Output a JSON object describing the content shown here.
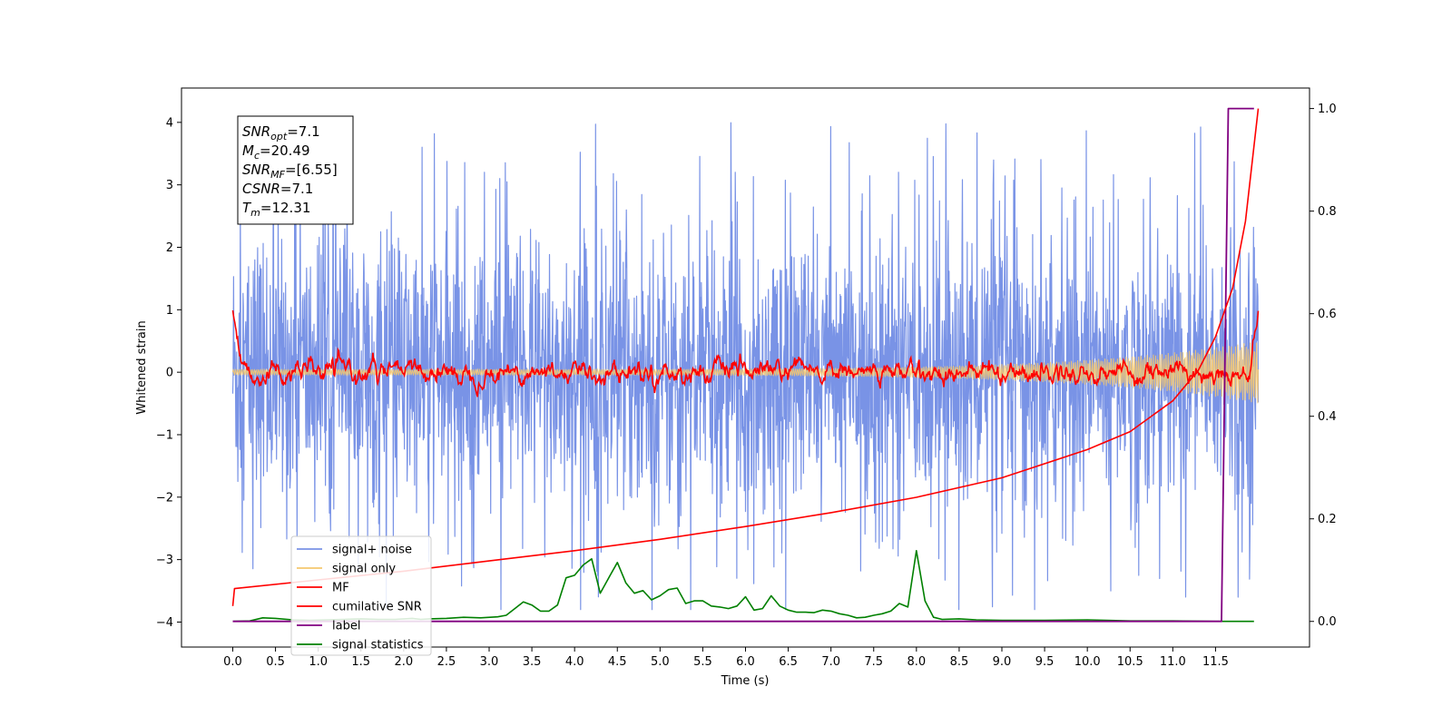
{
  "chart_data": {
    "type": "line",
    "title": "",
    "xlabel": "Time (s)",
    "ylabel": "Whitened strain",
    "ylabel_right": "",
    "xlim": [
      -0.6,
      12.6
    ],
    "ylim": [
      -4.4,
      4.55
    ],
    "ylim_right": [
      -0.05,
      1.04
    ],
    "x_ticks": [
      "0.0",
      "0.5",
      "1.0",
      "1.5",
      "2.0",
      "2.5",
      "3.0",
      "3.5",
      "4.0",
      "4.5",
      "5.0",
      "5.5",
      "6.0",
      "6.5",
      "7.0",
      "7.5",
      "8.0",
      "8.5",
      "9.0",
      "9.5",
      "10.0",
      "10.5",
      "11.0",
      "11.5"
    ],
    "y_ticks_left": [
      "4",
      "3",
      "2",
      "1",
      "0",
      "−1",
      "−2",
      "−3",
      "−4"
    ],
    "y_ticks_right": [
      "1.0",
      "0.8",
      "0.6",
      "0.4",
      "0.2",
      "0.0"
    ],
    "grid": false,
    "legend_position": "lower-left",
    "annotation": {
      "lines": [
        {
          "sym": "SNR",
          "sub": "opt",
          "val": "=7.1"
        },
        {
          "sym": "M",
          "sub": "c",
          "val": "=20.49"
        },
        {
          "sym": "SNR",
          "sub": "MF",
          "val": "=[6.55]"
        },
        {
          "sym": "CSNR",
          "sub": "",
          "val": "=7.1"
        },
        {
          "sym": "T",
          "sub": "m",
          "val": "=12.31"
        }
      ]
    },
    "series": [
      {
        "name": "signal+ noise",
        "color": "#7993e6",
        "axis": "left",
        "amplitude_range": [
          -3.8,
          4.0
        ],
        "x_range": [
          0.0,
          12.0
        ]
      },
      {
        "name": "signal only",
        "color": "#f5c86e",
        "axis": "left",
        "x_range": [
          0.0,
          12.0
        ],
        "amplitude_start": 0.05,
        "amplitude_end": 0.5
      },
      {
        "name": "MF",
        "color": "#ff0000",
        "axis": "left",
        "x_range": [
          0.0,
          12.0
        ],
        "start": 1.0,
        "baseline": 0.0,
        "end": 0.9
      },
      {
        "name": "cumilative SNR",
        "color": "#ff0000",
        "axis": "right",
        "x": [
          0.0,
          0.02,
          1.0,
          2.0,
          3.0,
          4.0,
          5.0,
          6.0,
          7.0,
          8.0,
          9.0,
          10.0,
          10.5,
          11.0,
          11.3,
          11.5,
          11.7,
          11.85,
          12.0
        ],
        "y": [
          0.03,
          0.064,
          0.081,
          0.098,
          0.118,
          0.138,
          0.16,
          0.185,
          0.212,
          0.242,
          0.28,
          0.335,
          0.37,
          0.43,
          0.49,
          0.555,
          0.65,
          0.78,
          1.0
        ]
      },
      {
        "name": "label",
        "color": "#800080",
        "axis": "right",
        "x": [
          0.0,
          11.57,
          11.65,
          11.95
        ],
        "y": [
          0.0,
          0.0,
          1.0,
          1.0
        ]
      },
      {
        "name": "signal statistics",
        "color": "#008000",
        "axis": "right",
        "x": [
          0.0,
          0.2,
          0.35,
          0.5,
          0.7,
          0.9,
          1.1,
          1.3,
          1.5,
          1.7,
          1.9,
          2.1,
          2.2,
          2.3,
          2.5,
          2.7,
          2.9,
          3.1,
          3.2,
          3.3,
          3.4,
          3.5,
          3.6,
          3.7,
          3.8,
          3.9,
          4.0,
          4.1,
          4.2,
          4.3,
          4.4,
          4.5,
          4.6,
          4.7,
          4.8,
          4.9,
          5.0,
          5.1,
          5.2,
          5.3,
          5.4,
          5.5,
          5.6,
          5.7,
          5.8,
          5.9,
          6.0,
          6.1,
          6.2,
          6.3,
          6.4,
          6.5,
          6.6,
          6.7,
          6.8,
          6.9,
          7.0,
          7.1,
          7.2,
          7.3,
          7.4,
          7.5,
          7.6,
          7.7,
          7.8,
          7.9,
          8.0,
          8.1,
          8.2,
          8.3,
          8.5,
          8.7,
          9.0,
          9.5,
          10.0,
          10.5,
          11.0,
          11.5,
          11.95
        ],
        "y": [
          0.0,
          0.001,
          0.007,
          0.006,
          0.003,
          0.002,
          0.003,
          0.004,
          0.005,
          0.004,
          0.004,
          0.006,
          0.004,
          0.005,
          0.006,
          0.008,
          0.007,
          0.009,
          0.012,
          0.025,
          0.038,
          0.032,
          0.02,
          0.02,
          0.032,
          0.085,
          0.09,
          0.11,
          0.122,
          0.055,
          0.085,
          0.115,
          0.075,
          0.055,
          0.06,
          0.042,
          0.05,
          0.062,
          0.065,
          0.035,
          0.04,
          0.04,
          0.03,
          0.028,
          0.025,
          0.03,
          0.048,
          0.022,
          0.025,
          0.05,
          0.03,
          0.022,
          0.018,
          0.018,
          0.017,
          0.022,
          0.02,
          0.015,
          0.012,
          0.007,
          0.008,
          0.012,
          0.015,
          0.02,
          0.035,
          0.028,
          0.138,
          0.04,
          0.008,
          0.004,
          0.005,
          0.003,
          0.002,
          0.002,
          0.003,
          0.001,
          0.001,
          0.0,
          0.0
        ]
      }
    ]
  }
}
